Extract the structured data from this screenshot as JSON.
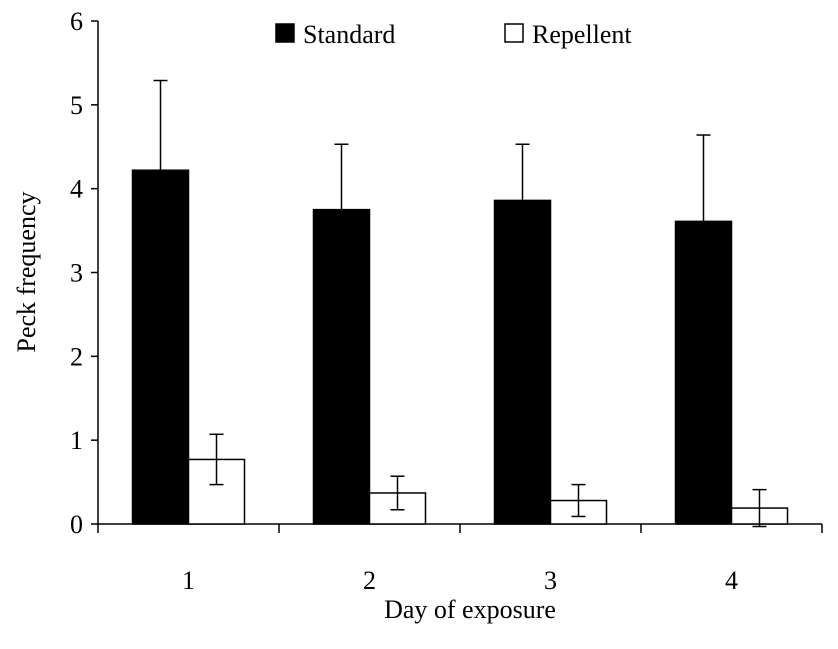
{
  "chart_data": {
    "type": "bar",
    "title": "",
    "xlabel": "Day of exposure",
    "ylabel": "Peck frequency",
    "categories": [
      "1",
      "2",
      "3",
      "4"
    ],
    "ylim": [
      0,
      6
    ],
    "yticks": [
      "0",
      "1",
      "2",
      "3",
      "4",
      "5",
      "6"
    ],
    "grid": false,
    "legend_position": "top",
    "series": [
      {
        "name": "Standard",
        "color": "#000000",
        "values": [
          4.22,
          3.75,
          3.86,
          3.61
        ],
        "error": [
          1.07,
          0.78,
          0.67,
          1.03
        ]
      },
      {
        "name": "Repellent",
        "color": "#ffffff",
        "values": [
          0.77,
          0.37,
          0.28,
          0.19
        ],
        "error": [
          0.3,
          0.2,
          0.19,
          0.22
        ]
      }
    ]
  }
}
